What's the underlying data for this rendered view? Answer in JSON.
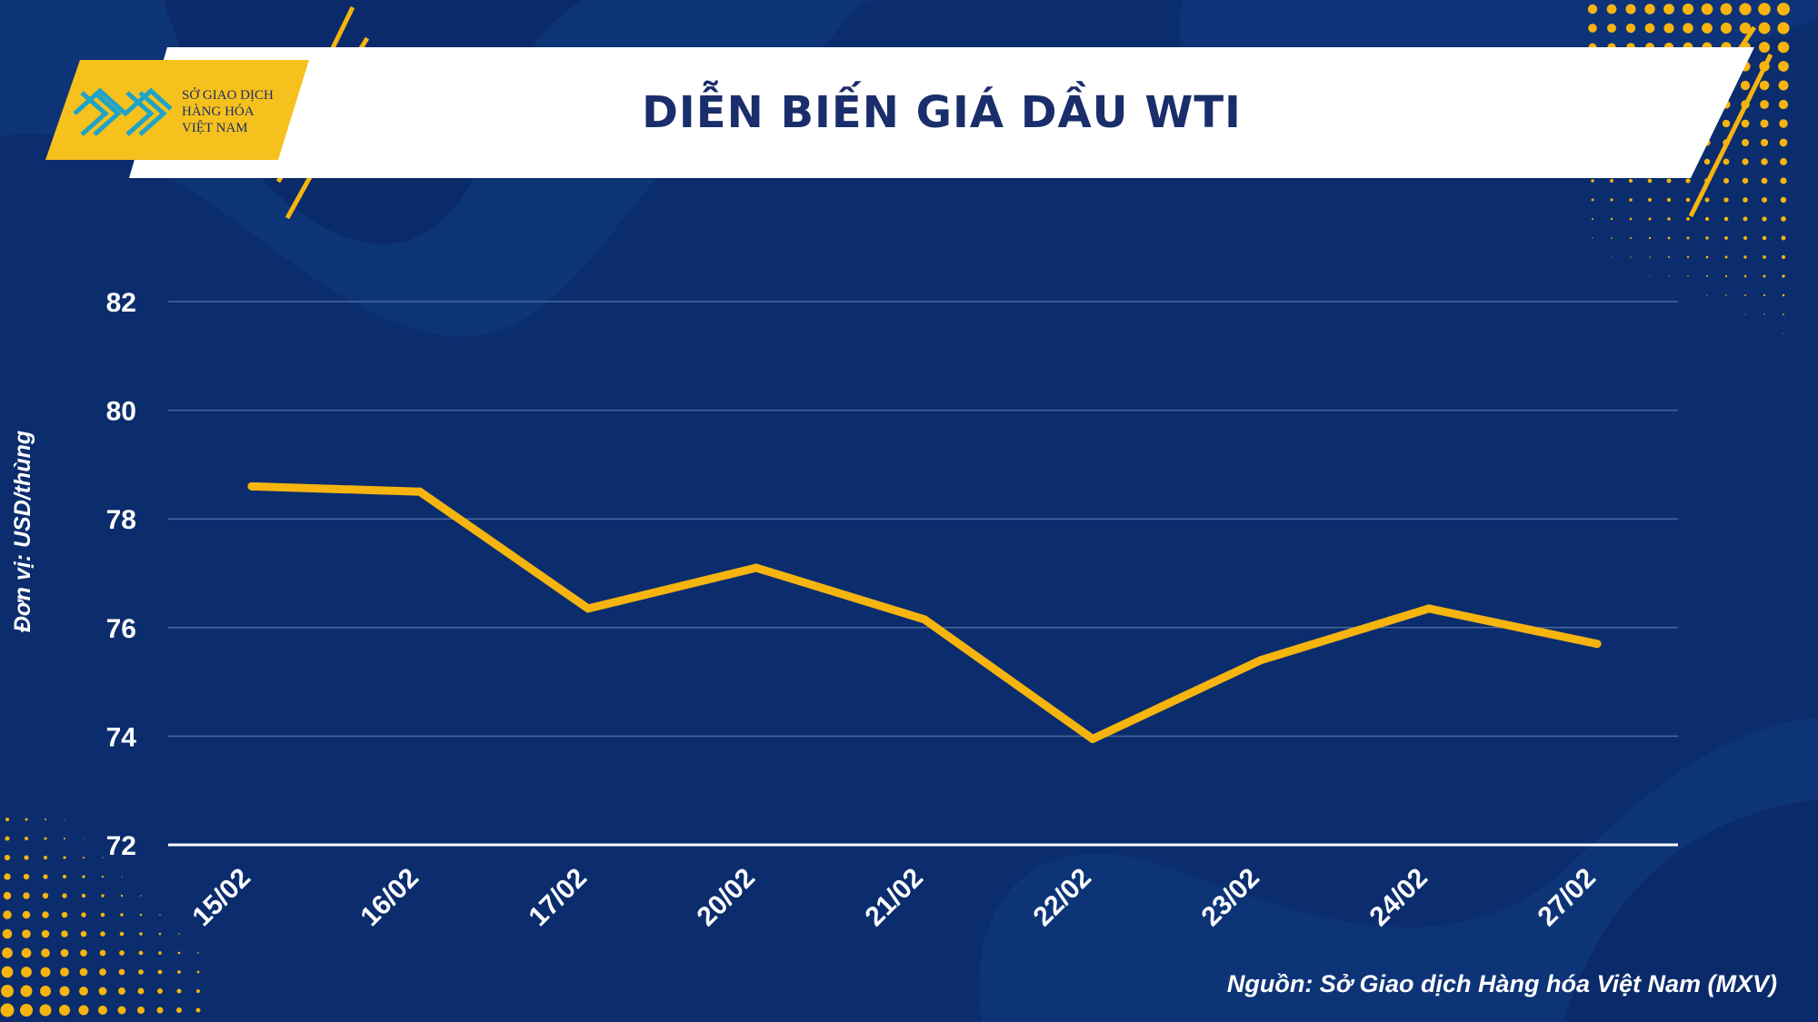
{
  "header": {
    "title": "DIỄN BIẾN GIÁ DẦU WTI",
    "logo_lines": [
      "SỞ GIAO DỊCH",
      "HÀNG HÓA",
      "VIỆT NAM"
    ]
  },
  "footer": {
    "source": "Nguồn: Sở Giao dịch Hàng hóa Việt Nam (MXV)"
  },
  "colors": {
    "background": "#0b2d6e",
    "accent": "#f6b40e",
    "title": "#1a2e6b",
    "grid": "#4a679d"
  },
  "chart_data": {
    "type": "line",
    "title": "DIỄN BIẾN GIÁ DẦU WTI",
    "xlabel": "",
    "ylabel": "Đơn vị: USD/thùng",
    "categories": [
      "15/02",
      "16/02",
      "17/02",
      "20/02",
      "21/02",
      "22/02",
      "23/02",
      "24/02",
      "27/02"
    ],
    "series": [
      {
        "values": [
          78.6,
          78.5,
          76.35,
          77.1,
          76.15,
          73.95,
          75.4,
          76.35,
          75.7
        ]
      }
    ],
    "ylim": [
      72,
      82
    ],
    "yticks": [
      72,
      74,
      76,
      78,
      80,
      82
    ],
    "grid": true,
    "legend": "none"
  }
}
